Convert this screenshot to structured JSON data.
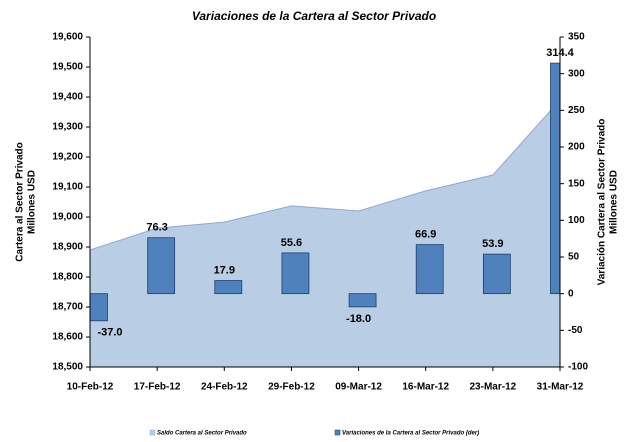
{
  "chart_data": {
    "type": "combo",
    "title": "Variaciones de la Cartera al Sector Privado",
    "y_label": [
      "Cartera al Sector Privado",
      "Millones USD"
    ],
    "y2_label": [
      "Variación Cartera al Sector Privado",
      "Millones USD"
    ],
    "categories": [
      "10-Feb-12",
      "17-Feb-12",
      "24-Feb-12",
      "29-Feb-12",
      "09-Mar-12",
      "16-Mar-12",
      "23-Mar-12",
      "31-Mar-12"
    ],
    "ylim": [
      18500,
      19600
    ],
    "yticks": [
      {
        "value": 18500,
        "label": "18,500"
      },
      {
        "value": 18600,
        "label": "18,600"
      },
      {
        "value": 18700,
        "label": "18,700"
      },
      {
        "value": 18800,
        "label": "18,800"
      },
      {
        "value": 18900,
        "label": "18,900"
      },
      {
        "value": 19000,
        "label": "19,000"
      },
      {
        "value": 19100,
        "label": "19,100"
      },
      {
        "value": 19200,
        "label": "19,200"
      },
      {
        "value": 19300,
        "label": "19,300"
      },
      {
        "value": 19400,
        "label": "19,400"
      },
      {
        "value": 19500,
        "label": "19,500"
      },
      {
        "value": 19600,
        "label": "19,600"
      }
    ],
    "y2lim": [
      -100,
      350
    ],
    "y2ticks": [
      -100,
      -50,
      0,
      50,
      100,
      150,
      200,
      250,
      300,
      350
    ],
    "series": [
      {
        "name": "Saldo Cartera al Sector Privado",
        "type": "area",
        "color": "#b9cde5",
        "values": [
          18890,
          18963,
          18983,
          19037,
          19020,
          19087,
          19140,
          19390
        ]
      },
      {
        "name": "Variaciones de la Cartera al Sector Privado (der)",
        "type": "bar",
        "axis": "y2",
        "color": "#4f81bd",
        "values": [
          -37.0,
          76.3,
          17.9,
          55.6,
          -18.0,
          66.9,
          53.9,
          314.4
        ],
        "value_labels": [
          "-37.0",
          "76.3",
          "17.9",
          "55.6",
          "-18.0",
          "66.9",
          "53.9",
          "314.4"
        ]
      }
    ],
    "grid": false,
    "legend": "bottom"
  }
}
